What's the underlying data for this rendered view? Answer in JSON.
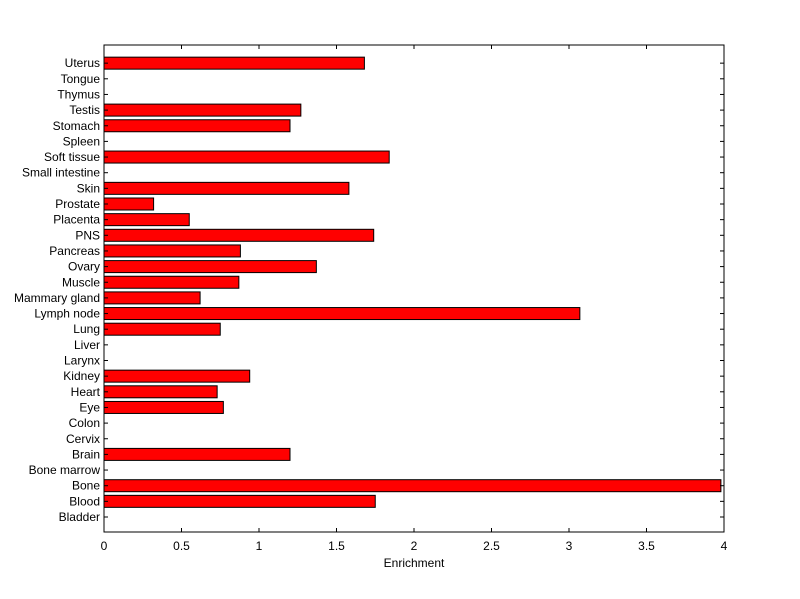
{
  "chart_data": {
    "type": "bar",
    "orientation": "horizontal",
    "title": "",
    "xlabel": "Enrichment",
    "ylabel": "",
    "xlim": [
      0,
      4
    ],
    "xticks": [
      "0",
      "0.5",
      "1",
      "1.5",
      "2",
      "2.5",
      "3",
      "3.5",
      "4"
    ],
    "grid": false,
    "legend": "none",
    "categories": [
      "Bladder",
      "Blood",
      "Bone",
      "Bone marrow",
      "Brain",
      "Cervix",
      "Colon",
      "Eye",
      "Heart",
      "Kidney",
      "Larynx",
      "Liver",
      "Lung",
      "Lymph node",
      "Mammary gland",
      "Muscle",
      "Ovary",
      "Pancreas",
      "PNS",
      "Placenta",
      "Prostate",
      "Skin",
      "Small intestine",
      "Soft tissue",
      "Spleen",
      "Stomach",
      "Testis",
      "Thymus",
      "Tongue",
      "Uterus"
    ],
    "values": [
      0,
      1.75,
      3.98,
      0,
      1.2,
      0,
      0,
      0.77,
      0.73,
      0.94,
      0,
      0,
      0.75,
      3.07,
      0.62,
      0.87,
      1.37,
      0.88,
      1.74,
      0.55,
      0.32,
      1.58,
      0,
      1.84,
      0,
      1.2,
      1.27,
      0,
      0,
      1.68
    ],
    "colors": {
      "bar_fill": "#ff0000",
      "bar_edge": "#000000",
      "axes": "#000000"
    }
  }
}
